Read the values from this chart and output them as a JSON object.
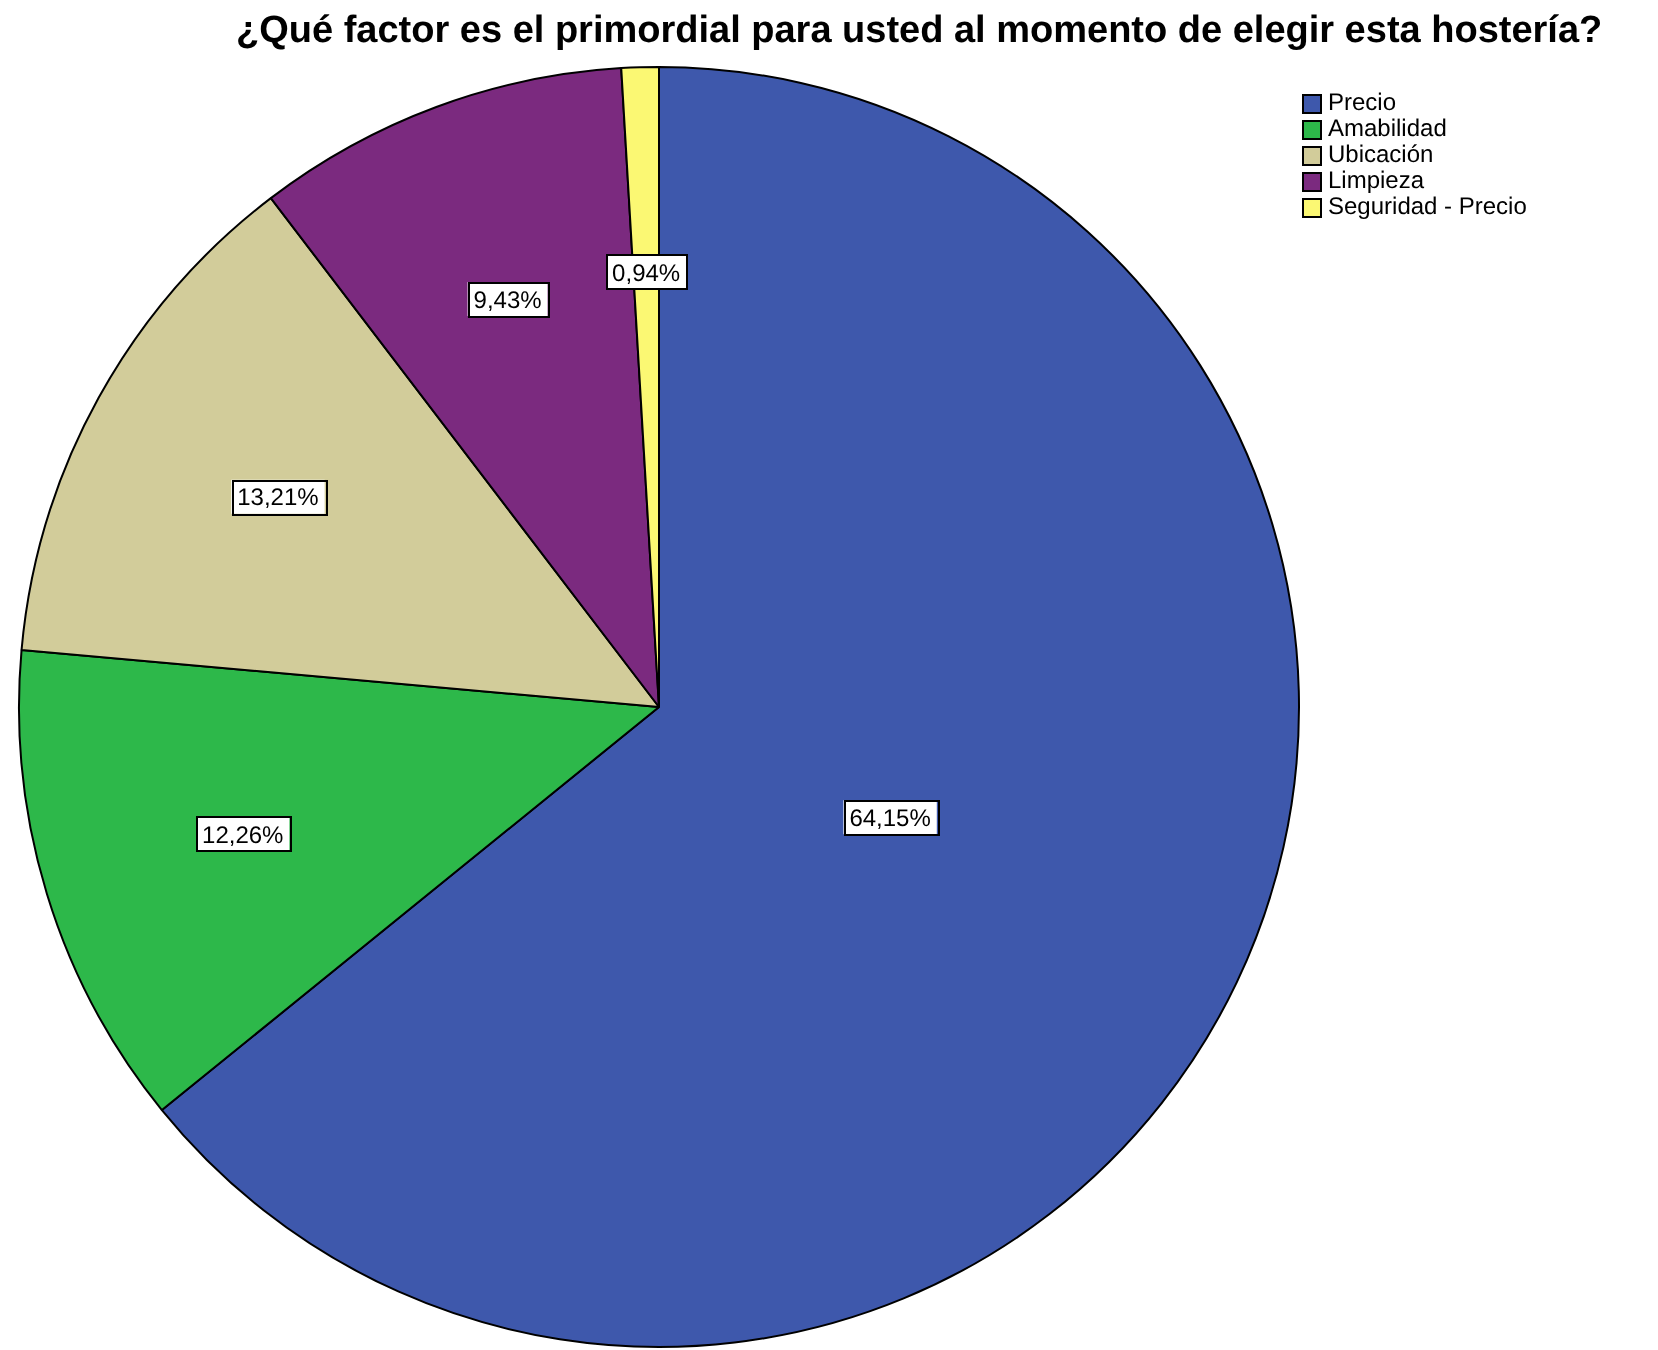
{
  "chart_data": {
    "type": "pie",
    "title": "¿Qué factor es el primordial para usted al momento de elegir esta hostería?",
    "categories": [
      "Precio",
      "Amabilidad",
      "Ubicación",
      "Limpieza",
      "Seguridad - Precio"
    ],
    "values": [
      64.15,
      12.26,
      13.21,
      9.43,
      0.94
    ],
    "colors": [
      "#3e58ac",
      "#2db84a",
      "#d2cc9a",
      "#7b2a7f",
      "#fbf873"
    ],
    "value_labels": [
      "64,15%",
      "12,26%",
      "13,21%",
      "9,43%",
      "0,94%"
    ],
    "legend": "top right"
  }
}
